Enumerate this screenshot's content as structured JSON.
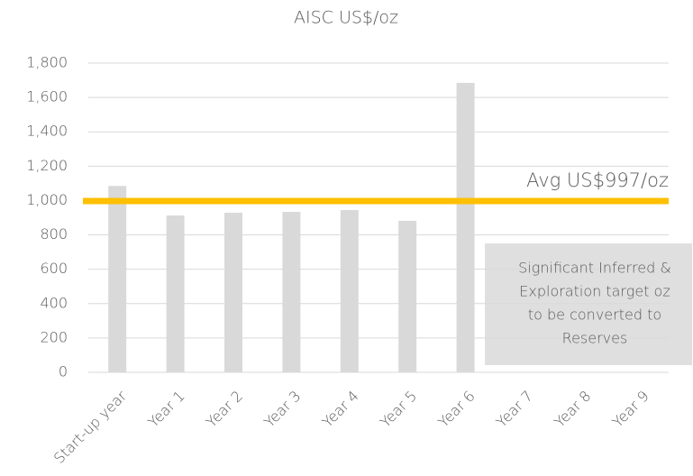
{
  "chart_data": {
    "type": "bar",
    "title": "AISC US$/oz",
    "categories": [
      "Start-up year",
      "Year 1",
      "Year 2",
      "Year 3",
      "Year 4",
      "Year 5",
      "Year 6",
      "Year 7",
      "Year 8",
      "Year 9"
    ],
    "values": [
      1085,
      913,
      929,
      934,
      945,
      882,
      1685,
      null,
      null,
      null
    ],
    "color": "#d9d9d9",
    "ylim": [
      0,
      1800
    ],
    "yticks": [
      0,
      {
        "value": 200,
        "label": "200"
      },
      {
        "value": 400,
        "label": "400"
      },
      {
        "value": 600,
        "label": "600"
      },
      {
        "value": 800,
        "label": "800"
      },
      {
        "value": 1000,
        "label": "1,000"
      },
      {
        "value": 1200,
        "label": "1,200"
      },
      {
        "value": 1400,
        "label": "1,400"
      },
      {
        "value": 1600,
        "label": "1,600"
      },
      {
        "value": 1800,
        "label": "1,800"
      }
    ],
    "grid": true,
    "average": {
      "value": 997,
      "label": "Avg US$997/oz",
      "color": "#ffc000"
    },
    "annotation": [
      "Significant Inferred &",
      "Exploration target oz",
      "to be converted to",
      "Reserves"
    ]
  }
}
